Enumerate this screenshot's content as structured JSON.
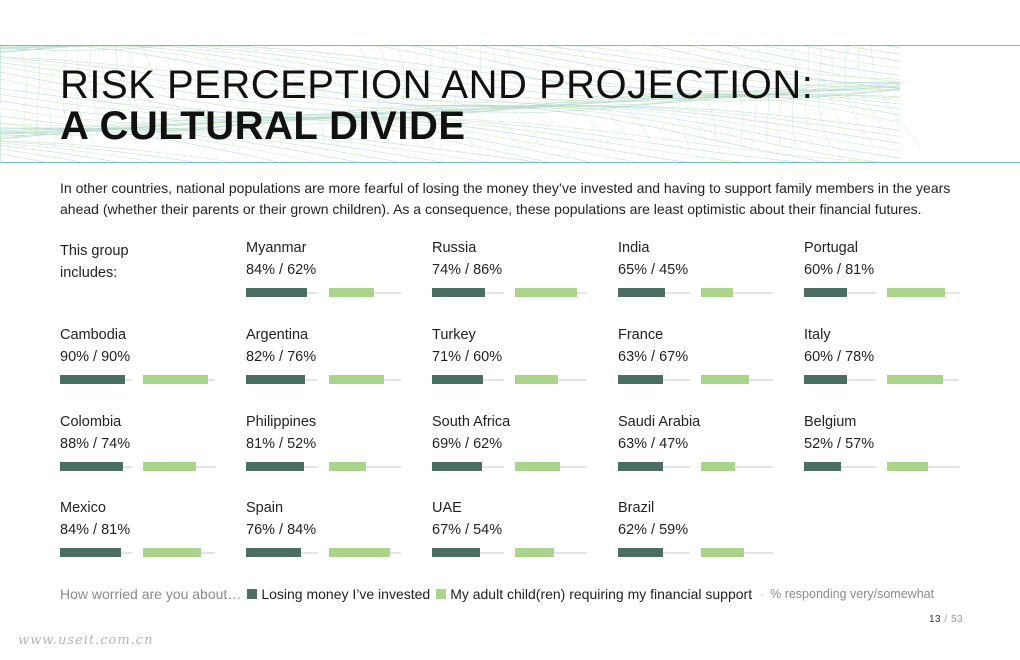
{
  "title": {
    "line1": "RISK PERCEPTION AND PROJECTION:",
    "line2": "A CULTURAL DIVIDE"
  },
  "intro": "In other countries, national populations are more fearful of losing the money they’ve invested and having to support family members in the years ahead (whether their parents or their grown children). As a consequence, these populations are least optimistic about their financial futures.",
  "group_label": {
    "line1": "This group",
    "line2": "includes:"
  },
  "colors": {
    "dark": "#4a6e62",
    "light": "#a9d48a",
    "accent_line": "#6fbfc6"
  },
  "chart_data": {
    "type": "bar",
    "value_unit": "%",
    "series": [
      {
        "name": "Losing money I’ve invested"
      },
      {
        "name": "My adult child(ren) requiring my financial support"
      }
    ],
    "countries": [
      {
        "name": "Myanmar",
        "label": "84% / 62%",
        "values": [
          84,
          62
        ]
      },
      {
        "name": "Russia",
        "label": "74% / 86%",
        "values": [
          74,
          86
        ]
      },
      {
        "name": "India",
        "label": "65% / 45%",
        "values": [
          65,
          45
        ]
      },
      {
        "name": "Portugal",
        "label": "60% / 81%",
        "values": [
          60,
          81
        ]
      },
      {
        "name": "Cambodia",
        "label": "90% / 90%",
        "values": [
          90,
          90
        ]
      },
      {
        "name": "Argentina",
        "label": "82% / 76%",
        "values": [
          82,
          76
        ]
      },
      {
        "name": "Turkey",
        "label": "71% / 60%",
        "values": [
          71,
          60
        ]
      },
      {
        "name": "France",
        "label": "63% / 67%",
        "values": [
          63,
          67
        ]
      },
      {
        "name": "Italy",
        "label": "60% / 78%",
        "values": [
          60,
          78
        ]
      },
      {
        "name": "Colombia",
        "label": "88% / 74%",
        "values": [
          88,
          74
        ]
      },
      {
        "name": "Philippines",
        "label": "81% / 52%",
        "values": [
          81,
          52
        ]
      },
      {
        "name": "South Africa",
        "label": "69% / 62%",
        "values": [
          69,
          62
        ]
      },
      {
        "name": "Saudi Arabia",
        "label": "63% / 47%",
        "values": [
          63,
          47
        ]
      },
      {
        "name": "Belgium",
        "label": "52% / 57%",
        "values": [
          52,
          57
        ]
      },
      {
        "name": "Mexico",
        "label": "84% / 81%",
        "values": [
          84,
          81
        ]
      },
      {
        "name": "Spain",
        "label": "76% / 84%",
        "values": [
          76,
          84
        ]
      },
      {
        "name": "UAE",
        "label": "67% / 54%",
        "values": [
          67,
          54
        ]
      },
      {
        "name": "Brazil",
        "label": "62% / 59%",
        "values": [
          62,
          59
        ]
      }
    ]
  },
  "legend": {
    "prompt": "How worried are you about…",
    "item1": "Losing money I’ve invested",
    "item2": "My adult child(ren) requiring my financial support",
    "note": "% responding very/somewhat"
  },
  "page": {
    "current": "13",
    "total": "/ 53"
  },
  "watermark": "www.useit.com.cn"
}
